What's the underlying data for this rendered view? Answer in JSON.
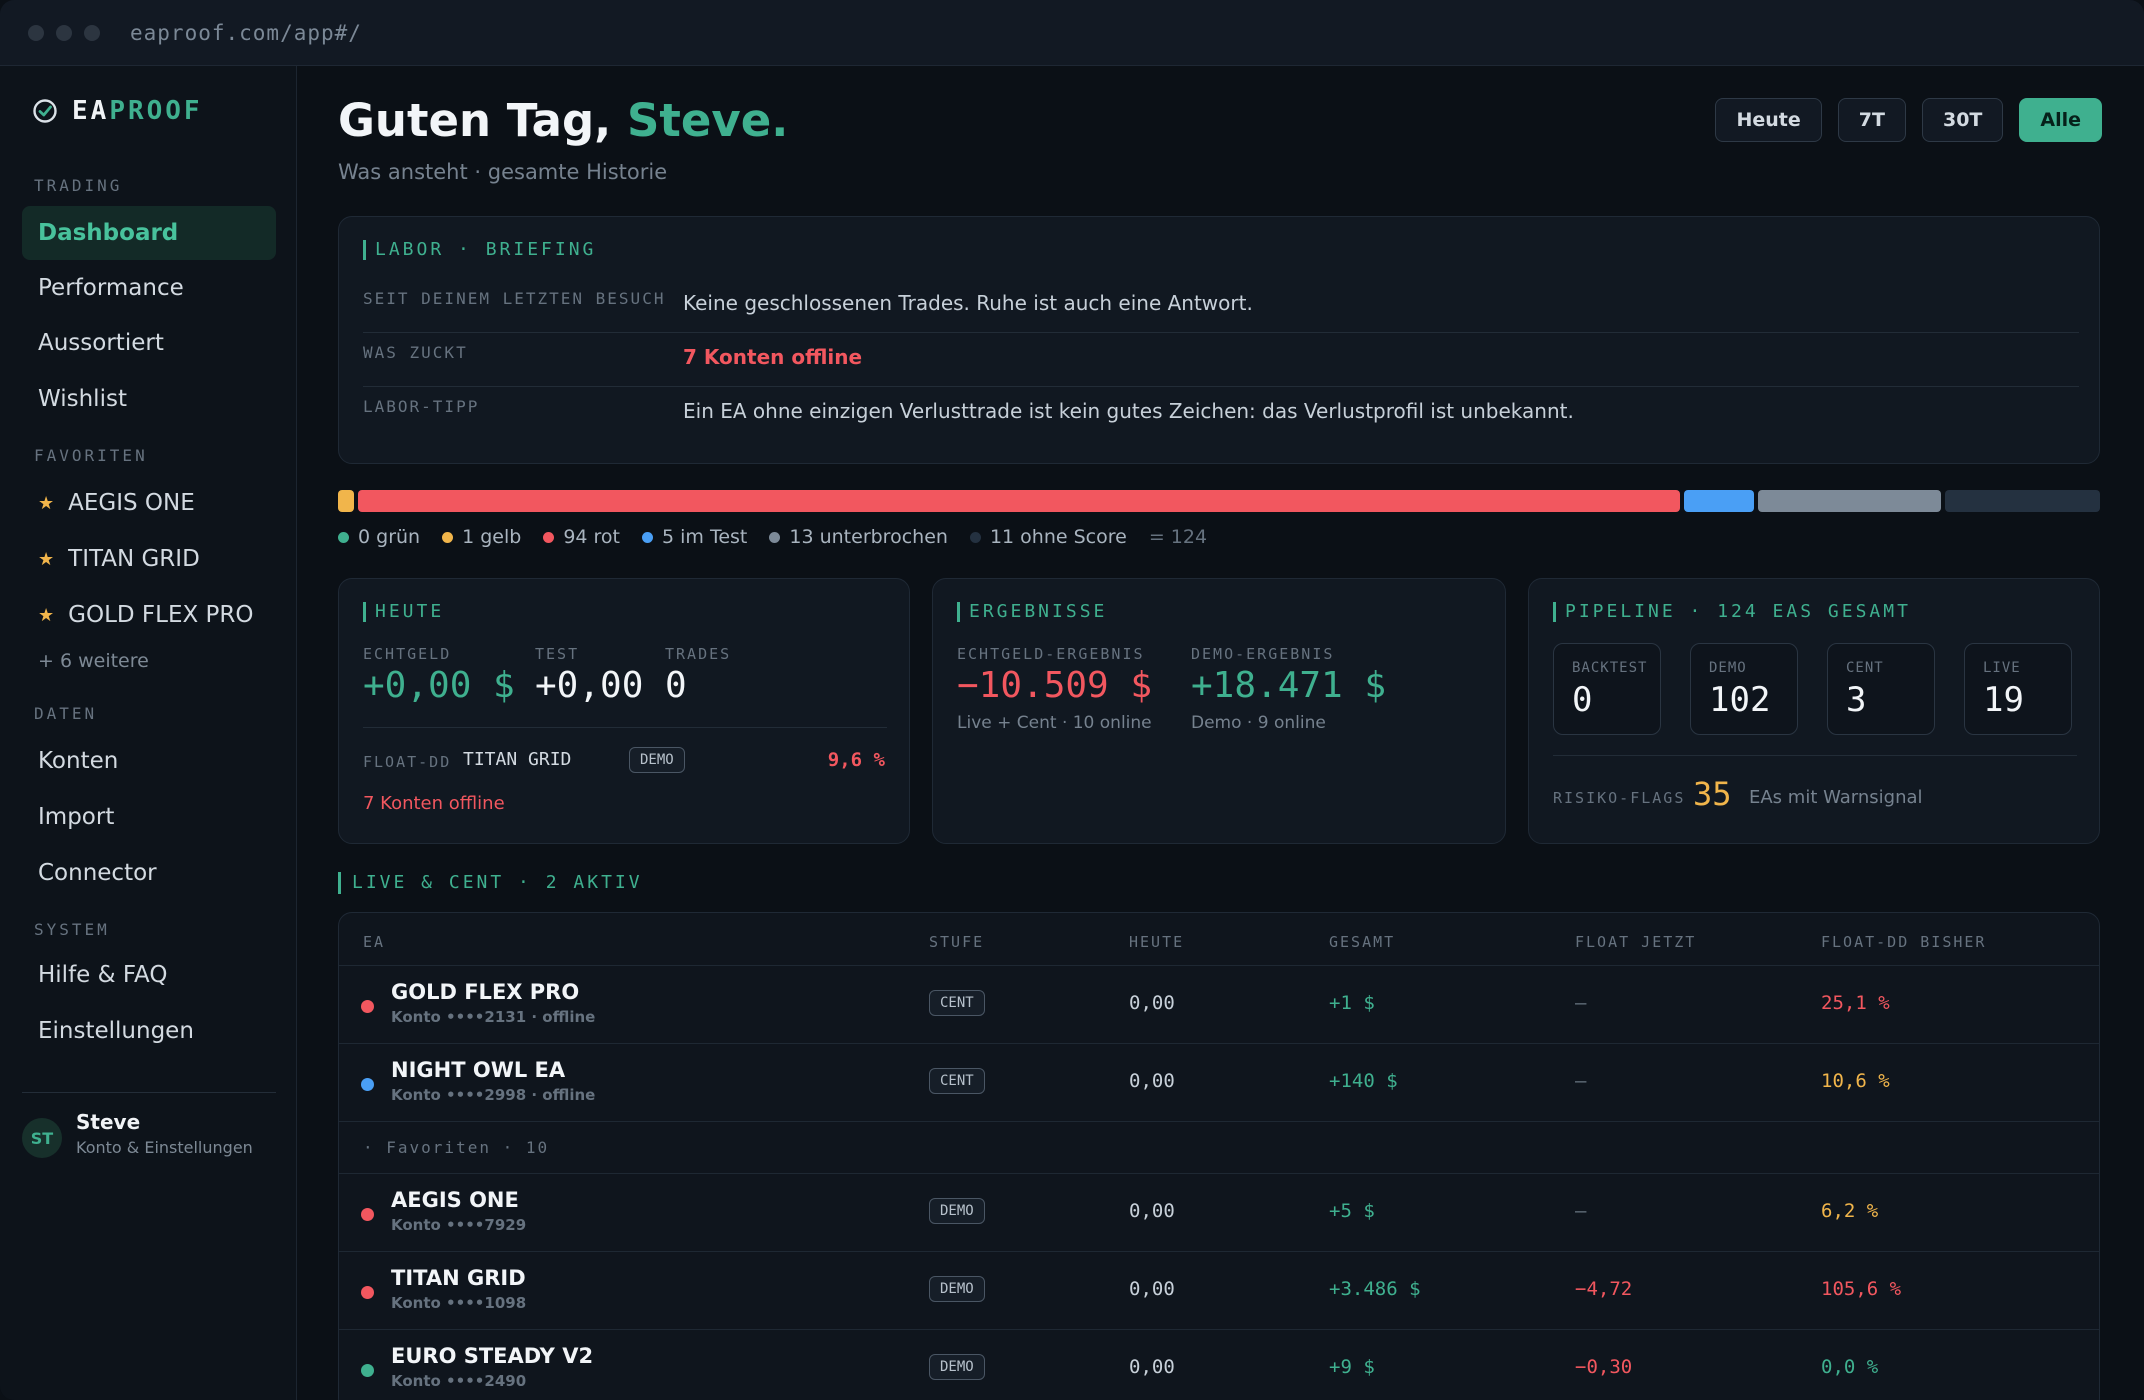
{
  "browser": {
    "url": "eaproof.com/app#/"
  },
  "brand": {
    "part1": "EA",
    "part2": "PROOF"
  },
  "sidebar": {
    "sections": {
      "trading": "TRADING",
      "favoriten": "FAVORITEN",
      "daten": "DATEN",
      "system": "SYSTEM"
    },
    "trading_items": [
      "Dashboard",
      "Performance",
      "Aussortiert",
      "Wishlist"
    ],
    "favorite_items": [
      "AEGIS ONE",
      "TITAN GRID",
      "GOLD FLEX PRO"
    ],
    "favorites_more": "+ 6 weitere",
    "daten_items": [
      "Konten",
      "Import",
      "Connector"
    ],
    "system_items": [
      "Hilfe & FAQ",
      "Einstellungen"
    ],
    "user": {
      "initials": "ST",
      "name": "Steve",
      "subtitle": "Konto & Einstellungen"
    }
  },
  "header": {
    "greeting": "Guten Tag, ",
    "name": "Steve.",
    "subtitle": "Was ansteht · gesamte Historie",
    "ranges": [
      "Heute",
      "7T",
      "30T",
      "Alle"
    ],
    "active_range": "Alle"
  },
  "briefing": {
    "label": "LABOR · BRIEFING",
    "rows": [
      {
        "key": "SEIT DEINEM LETZTEN BESUCH",
        "value": "Keine geschlossenen Trades. Ruhe ist auch eine Antwort."
      },
      {
        "key": "WAS ZUCKT",
        "value": "7 Konten offline"
      },
      {
        "key": "LABOR-TIPP",
        "value": "Ein EA ohne einzigen Verlusttrade ist kein gutes Zeichen: das Verlustprofil ist unbekannt."
      }
    ]
  },
  "status_distribution": {
    "segments": [
      {
        "label": "0 grün",
        "count": 0,
        "color": "#3fb08f"
      },
      {
        "label": "1 gelb",
        "count": 1,
        "color": "#f1b54b"
      },
      {
        "label": "94 rot",
        "count": 94,
        "color": "#f2575f"
      },
      {
        "label": "5 im Test",
        "count": 5,
        "color": "#4a9ff5"
      },
      {
        "label": "13 unterbrochen",
        "count": 13,
        "color": "#7d8a98"
      },
      {
        "label": "11 ohne Score",
        "count": 11,
        "color": "#243140"
      }
    ],
    "total_label": "= 124",
    "total": 124
  },
  "today": {
    "label": "HEUTE",
    "echtgeld_label": "ECHTGELD",
    "echtgeld_value": "+0,00 $",
    "test_label": "TEST",
    "test_value": "+0,00",
    "trades_label": "TRADES",
    "trades_value": "0",
    "float_label": "FLOAT-DD",
    "float_ea": "TITAN GRID",
    "float_tag": "DEMO",
    "float_value": "9,6 %",
    "offline": "7 Konten offline"
  },
  "results": {
    "label": "ERGEBNISSE",
    "echt_label": "ECHTGELD-ERGEBNIS",
    "echt_value": "−10.509 $",
    "echt_sub": "Live + Cent · 10 online",
    "demo_label": "DEMO-ERGEBNIS",
    "demo_value": "+18.471 $",
    "demo_sub": "Demo · 9 online"
  },
  "pipeline": {
    "label": "PIPELINE · 124 EAS GESAMT",
    "stages": [
      {
        "label": "BACKTEST",
        "value": "0"
      },
      {
        "label": "DEMO",
        "value": "102"
      },
      {
        "label": "CENT",
        "value": "3"
      },
      {
        "label": "LIVE",
        "value": "19"
      }
    ],
    "risk_label": "RISIKO-FLAGS",
    "risk_value": "35",
    "risk_sub": "EAs mit Warnsignal"
  },
  "live_table": {
    "title": "LIVE & CENT · 2 AKTIV",
    "columns": [
      "EA",
      "STUFE",
      "HEUTE",
      "GESAMT",
      "FLOAT JETZT",
      "FLOAT-DD BISHER"
    ],
    "group_label": "· Favoriten · 10",
    "rows": [
      {
        "name": "GOLD FLEX PRO",
        "sub": "Konto ••••2131 · offline",
        "stage": "CENT",
        "today": "0,00",
        "total": "+1 $",
        "float_now": "–",
        "float_dd": "25,1 %",
        "dot": "#f2575f"
      },
      {
        "name": "NIGHT OWL EA",
        "sub": "Konto ••••2998 · offline",
        "stage": "CENT",
        "today": "0,00",
        "total": "+140 $",
        "float_now": "–",
        "float_dd": "10,6 %",
        "dot": "#4a9ff5"
      },
      {
        "name": "AEGIS ONE",
        "sub": "Konto ••••7929",
        "stage": "DEMO",
        "today": "0,00",
        "total": "+5 $",
        "float_now": "–",
        "float_dd": "6,2 %",
        "dot": "#f2575f"
      },
      {
        "name": "TITAN GRID",
        "sub": "Konto ••••1098",
        "stage": "DEMO",
        "today": "0,00",
        "total": "+3.486 $",
        "float_now": "−4,72",
        "float_dd": "105,6 %",
        "dot": "#f2575f"
      },
      {
        "name": "EURO STEADY V2",
        "sub": "Konto ••••2490",
        "stage": "DEMO",
        "today": "0,00",
        "total": "+9 $",
        "float_now": "−0,30",
        "float_dd": "0,0 %",
        "dot": "#3fb08f"
      }
    ]
  },
  "colors": {
    "accent": "#3fb08f",
    "negative": "#f2575f",
    "warning": "#f1b54b",
    "info": "#4a9ff5"
  }
}
